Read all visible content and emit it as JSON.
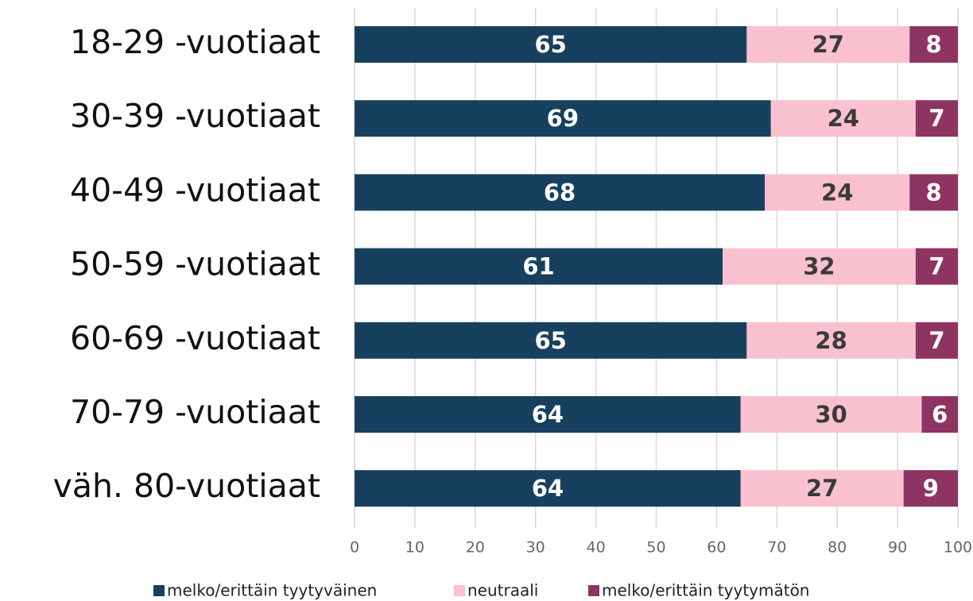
{
  "chart_data": {
    "type": "stacked_barh",
    "categories": [
      "18-29 -vuotiaat",
      "30-39 -vuotiaat",
      "40-49 -vuotiaat",
      "50-59 -vuotiaat",
      "60-69 -vuotiaat",
      "70-79 -vuotiaat",
      "väh. 80-vuotiaat"
    ],
    "series": [
      {
        "name": "melko/erittäin tyytyväinen",
        "color": "#17405f",
        "label_color": "#ffffff",
        "values": [
          65,
          69,
          68,
          61,
          65,
          64,
          64
        ]
      },
      {
        "name": "neutraali",
        "color": "#f9c1cf",
        "label_color": "#3a3a3a",
        "values": [
          27,
          24,
          24,
          32,
          28,
          30,
          27
        ]
      },
      {
        "name": "melko/erittäin tyytymätön",
        "color": "#8e3462",
        "label_color": "#ffffff",
        "values": [
          8,
          7,
          8,
          7,
          7,
          6,
          9
        ]
      }
    ],
    "xlim": [
      0,
      100
    ],
    "xticks": [
      0,
      10,
      20,
      30,
      40,
      50,
      60,
      70,
      80,
      90,
      100
    ],
    "grid": true,
    "legend": "bottom"
  }
}
